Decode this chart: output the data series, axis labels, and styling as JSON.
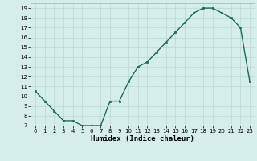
{
  "x": [
    0,
    1,
    2,
    3,
    4,
    5,
    6,
    7,
    8,
    9,
    10,
    11,
    12,
    13,
    14,
    15,
    16,
    17,
    18,
    19,
    20,
    21,
    22,
    23
  ],
  "y": [
    10.5,
    9.5,
    8.5,
    7.5,
    7.5,
    7.0,
    7.0,
    7.0,
    9.5,
    9.5,
    11.5,
    13.0,
    13.5,
    14.5,
    15.5,
    16.5,
    17.5,
    18.5,
    19.0,
    19.0,
    18.5,
    18.0,
    17.0,
    11.5
  ],
  "xlim": [
    -0.5,
    23.5
  ],
  "ylim": [
    7,
    19.5
  ],
  "yticks": [
    7,
    8,
    9,
    10,
    11,
    12,
    13,
    14,
    15,
    16,
    17,
    18,
    19
  ],
  "xticks": [
    0,
    1,
    2,
    3,
    4,
    5,
    6,
    7,
    8,
    9,
    10,
    11,
    12,
    13,
    14,
    15,
    16,
    17,
    18,
    19,
    20,
    21,
    22,
    23
  ],
  "xlabel": "Humidex (Indice chaleur)",
  "line_color": "#1a6b5a",
  "marker": "s",
  "marker_size": 2,
  "bg_color": "#d6eeeb",
  "grid_color": "#b8d8d4",
  "tick_fontsize": 5,
  "xlabel_fontsize": 6.5
}
